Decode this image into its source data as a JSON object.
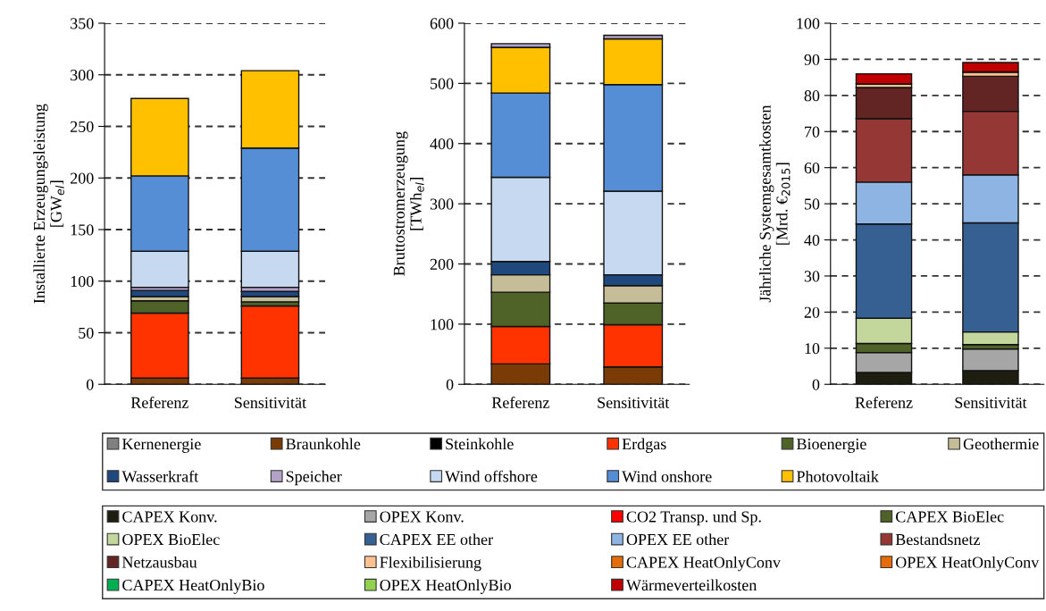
{
  "chart_data": [
    {
      "type": "bar",
      "stacked": true,
      "ylabel": "Installierte Erzeugungsleistung\n[GW$_{el}$]",
      "categories": [
        "Referenz",
        "Sensitivität"
      ],
      "ylim": [
        0,
        350
      ],
      "yticks": [
        0,
        50,
        100,
        150,
        200,
        250,
        300,
        350
      ],
      "grid": "y",
      "legend": "bottom",
      "series": [
        {
          "name": "Kernenergie",
          "color": "#808080",
          "values": [
            0,
            0
          ]
        },
        {
          "name": "Braunkohle",
          "color": "#7a3b06",
          "values": [
            6,
            6
          ]
        },
        {
          "name": "Steinkohle",
          "color": "#000000",
          "values": [
            0,
            0
          ]
        },
        {
          "name": "Erdgas",
          "color": "#ff3300",
          "values": [
            63,
            70
          ]
        },
        {
          "name": "Bioenergie",
          "color": "#4f6228",
          "values": [
            12,
            4
          ]
        },
        {
          "name": "Geothermie",
          "color": "#c4bd97",
          "values": [
            4,
            5
          ]
        },
        {
          "name": "Wasserkraft",
          "color": "#1f497d",
          "values": [
            6,
            5
          ]
        },
        {
          "name": "Speicher",
          "color": "#b3a2c7",
          "values": [
            3,
            4
          ]
        },
        {
          "name": "Wind offshore",
          "color": "#c6d9f1",
          "values": [
            35,
            35
          ]
        },
        {
          "name": "Wind onshore",
          "color": "#558ed5",
          "values": [
            73,
            100
          ]
        },
        {
          "name": "Photovoltaik",
          "color": "#ffc000",
          "values": [
            75,
            75
          ]
        }
      ]
    },
    {
      "type": "bar",
      "stacked": true,
      "ylabel": "Bruttostromerzeugung\n[TWh$_{el}$]",
      "categories": [
        "Referenz",
        "Sensitivität"
      ],
      "ylim": [
        0,
        600
      ],
      "yticks": [
        0,
        100,
        200,
        300,
        400,
        500,
        600
      ],
      "grid": "y",
      "legend": "bottom",
      "series": [
        {
          "name": "Braunkohle",
          "color": "#7a3b06",
          "values": [
            34,
            29
          ]
        },
        {
          "name": "Erdgas",
          "color": "#ff3300",
          "values": [
            62,
            70
          ]
        },
        {
          "name": "Bioenergie",
          "color": "#4f6228",
          "values": [
            57,
            36
          ]
        },
        {
          "name": "Geothermie",
          "color": "#c4bd97",
          "values": [
            29,
            29
          ]
        },
        {
          "name": "Wasserkraft",
          "color": "#1f497d",
          "values": [
            22,
            18
          ]
        },
        {
          "name": "Wind offshore",
          "color": "#c6d9f1",
          "values": [
            140,
            139
          ]
        },
        {
          "name": "Wind onshore",
          "color": "#558ed5",
          "values": [
            140,
            177
          ]
        },
        {
          "name": "Photovoltaik",
          "color": "#ffc000",
          "values": [
            76,
            76
          ]
        },
        {
          "name": "Speicher",
          "color": "#b3a2c7",
          "values": [
            6,
            6
          ]
        }
      ]
    },
    {
      "type": "bar",
      "stacked": true,
      "ylabel": "Jährliche Systemgesamtkosten\n[Mrd. €$_{2015}$]",
      "categories": [
        "Referenz",
        "Sensitivität"
      ],
      "ylim": [
        0,
        100
      ],
      "yticks": [
        0,
        10,
        20,
        30,
        40,
        50,
        60,
        70,
        80,
        90,
        100
      ],
      "grid": "y",
      "legend": "bottom",
      "series": [
        {
          "name": "CAPEX Konv.",
          "color": "#1d1d10",
          "values": [
            3.3,
            3.8
          ]
        },
        {
          "name": "OPEX Konv.",
          "color": "#a6a6a6",
          "values": [
            5.5,
            6.0
          ]
        },
        {
          "name": "CO2 Transp. und Sp.",
          "color": "#ff0000",
          "values": [
            0,
            0
          ]
        },
        {
          "name": "CAPEX BioElec",
          "color": "#4f6228",
          "values": [
            2.5,
            1.2
          ]
        },
        {
          "name": "OPEX BioElec",
          "color": "#c3d69b",
          "values": [
            7.0,
            3.5
          ]
        },
        {
          "name": "CAPEX EE other",
          "color": "#376092",
          "values": [
            26.1,
            30.2
          ]
        },
        {
          "name": "OPEX EE other",
          "color": "#8eb4e3",
          "values": [
            11.6,
            13.3
          ]
        },
        {
          "name": "Bestandsnetz",
          "color": "#953735",
          "values": [
            17.6,
            17.6
          ]
        },
        {
          "name": "Netzausbau",
          "color": "#632523",
          "values": [
            8.6,
            9.7
          ]
        },
        {
          "name": "Flexibilisierung",
          "color": "#fac090",
          "values": [
            1.0,
            1.2
          ]
        },
        {
          "name": "CAPEX HeatOnlyConv",
          "color": "#e46c0a",
          "values": [
            0,
            0
          ]
        },
        {
          "name": "OPEX HeatOnlyConv",
          "color": "#e46c0a",
          "values": [
            0,
            0
          ]
        },
        {
          "name": "CAPEX HeatOnlyBio",
          "color": "#00b050",
          "values": [
            0,
            0
          ]
        },
        {
          "name": "OPEX HeatOnlyBio",
          "color": "#92d050",
          "values": [
            0,
            0
          ]
        },
        {
          "name": "Wärmeverteilkosten",
          "color": "#c00000",
          "values": [
            2.8,
            2.6
          ]
        }
      ]
    }
  ]
}
